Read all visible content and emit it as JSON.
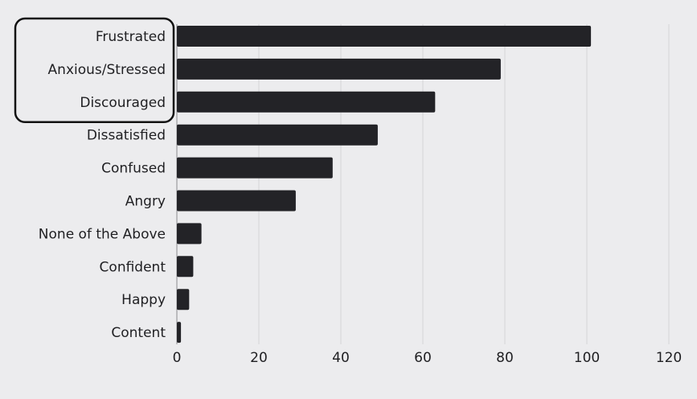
{
  "chart_data": {
    "type": "bar",
    "orientation": "horizontal",
    "categories": [
      "Frustrated",
      "Anxious/Stressed",
      "Discouraged",
      "Dissatisfied",
      "Confused",
      "Angry",
      "None of the Above",
      "Confident",
      "Happy",
      "Content"
    ],
    "values": [
      101,
      79,
      63,
      49,
      38,
      29,
      6,
      4,
      3,
      1
    ],
    "xlim": [
      0,
      120
    ],
    "xticks": [
      0,
      20,
      40,
      60,
      80,
      100,
      120
    ],
    "grid": "vertical",
    "highlighted_categories": [
      "Frustrated",
      "Anxious/Stressed",
      "Discouraged"
    ],
    "colors": {
      "bar": "#232327",
      "background": "#ececee",
      "grid": "#d3d3d6",
      "highlight_border": "#111111"
    }
  }
}
